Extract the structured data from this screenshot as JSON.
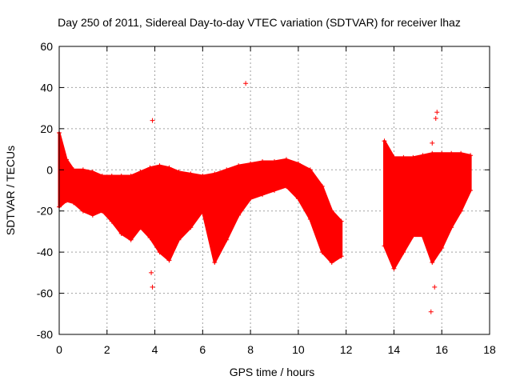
{
  "chart_data": {
    "type": "scatter",
    "title": "Day 250 of 2011, Sidereal Day-to-day VTEC variation (SDTVAR) for receiver lhaz",
    "xlabel": "GPS time / hours",
    "ylabel": "SDTVAR / TECUs",
    "xlim": [
      0,
      18
    ],
    "ylim": [
      -80,
      60
    ],
    "xticks": [
      0,
      2,
      4,
      6,
      8,
      10,
      12,
      14,
      16,
      18
    ],
    "yticks": [
      -80,
      -60,
      -40,
      -20,
      0,
      20,
      40,
      60
    ],
    "grid": true,
    "marker": "+",
    "series": [
      {
        "name": "SDTVAR",
        "color": "#ff0000",
        "bands": [
          {
            "x": [
              0.0,
              0.3,
              0.6,
              1.0,
              1.4,
              1.8,
              2.2,
              2.6,
              3.0,
              3.4,
              3.8,
              4.2,
              4.6,
              5.0,
              5.5,
              6.0,
              6.5,
              7.0,
              7.5,
              8.0,
              8.5,
              9.0,
              9.5,
              10.0,
              10.5,
              11.0,
              11.4,
              11.8
            ],
            "upper": [
              18,
              5,
              0,
              0,
              -1,
              -3,
              -3,
              -3,
              -3,
              -1,
              1,
              2,
              1,
              -1,
              -2,
              -3,
              -2,
              0,
              2,
              3,
              4,
              4,
              5,
              3,
              0,
              -8,
              -20,
              -25
            ],
            "lower": [
              -18,
              -15,
              -16,
              -20,
              -22,
              -20,
              -25,
              -31,
              -34,
              -28,
              -33,
              -40,
              -44,
              -34,
              -28,
              -20,
              -45,
              -34,
              -22,
              -14,
              -12,
              -10,
              -8,
              -14,
              -24,
              -40,
              -45,
              -42
            ]
          },
          {
            "x": [
              13.6,
              14.0,
              14.4,
              14.8,
              15.2,
              15.6,
              16.0,
              16.4,
              16.8,
              17.2
            ],
            "upper": [
              14,
              6,
              6,
              6,
              7,
              8,
              8,
              8,
              8,
              7
            ],
            "lower": [
              -37,
              -48,
              -40,
              -32,
              -32,
              -45,
              -38,
              -28,
              -20,
              -10
            ]
          }
        ],
        "outliers": [
          {
            "x": 3.9,
            "y": 24
          },
          {
            "x": 3.9,
            "y": -57
          },
          {
            "x": 3.85,
            "y": -50
          },
          {
            "x": 7.8,
            "y": 42
          },
          {
            "x": 13.7,
            "y": -16
          },
          {
            "x": 15.6,
            "y": 13
          },
          {
            "x": 15.75,
            "y": 25
          },
          {
            "x": 15.8,
            "y": 28
          },
          {
            "x": 15.55,
            "y": -69
          },
          {
            "x": 15.7,
            "y": -57
          }
        ]
      }
    ]
  }
}
